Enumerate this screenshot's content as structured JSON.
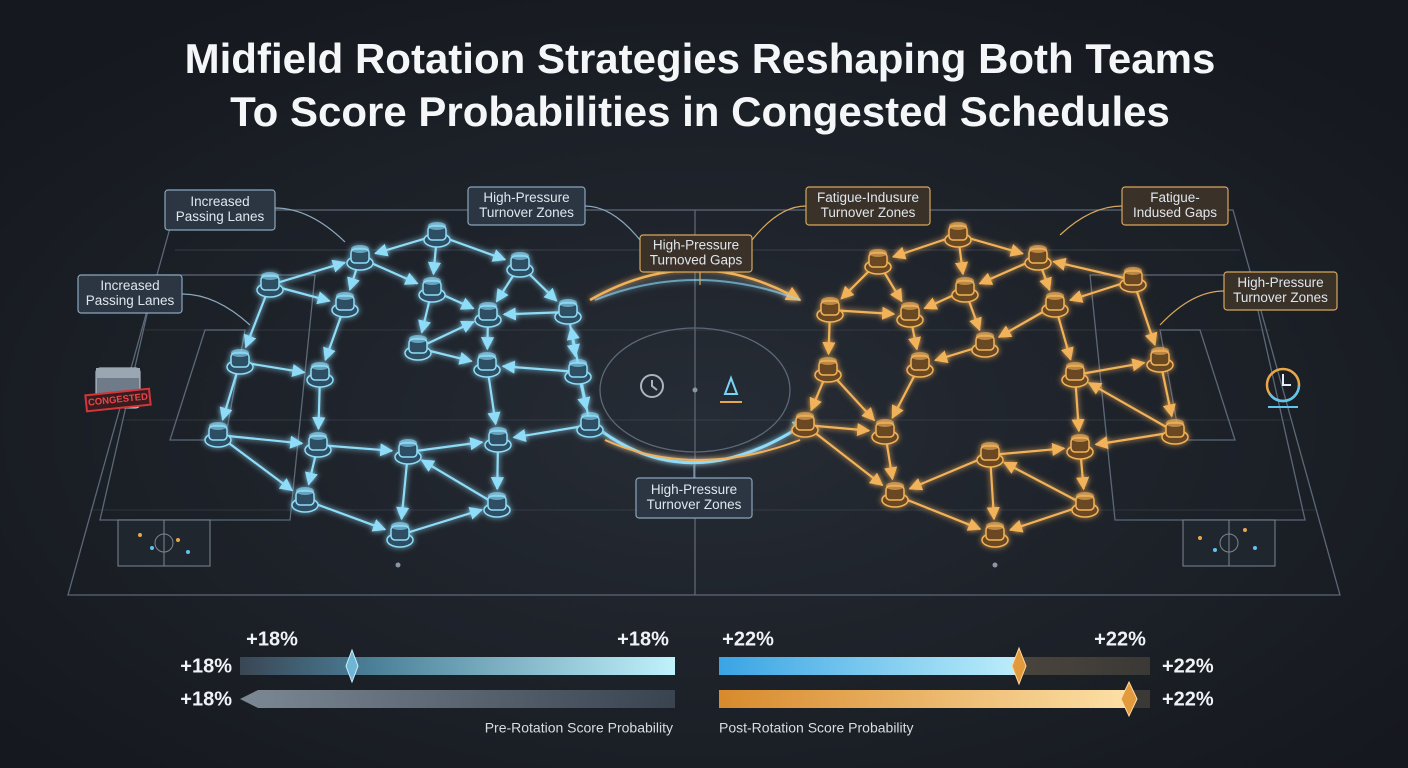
{
  "header": {
    "title": [
      "Midfield Rotation Strategies Reshaping Both Teams",
      "To Score Probabilities in Congested Schedules"
    ]
  },
  "callouts": [
    {
      "lines": [
        "Increased",
        "Passing Lanes"
      ]
    },
    {
      "lines": [
        "Increased",
        "Passing Lanes"
      ]
    },
    {
      "lines": [
        "High-Pressure",
        "Turnover Zones"
      ]
    },
    {
      "lines": [
        "High-Pressure",
        "Turnoved Gaps"
      ]
    },
    {
      "lines": [
        "Fatigue-Indusure",
        "Turnover Zones"
      ]
    },
    {
      "lines": [
        "Fatigue-",
        "Indused Gaps"
      ]
    },
    {
      "lines": [
        "High-Pressure",
        "Turnover Zones"
      ]
    },
    {
      "lines": [
        "High-Pressure",
        "Turnover Zones"
      ]
    }
  ],
  "stamp": "CONGESTED",
  "bars": {
    "pre": {
      "caption": "Pre-Rotation Score Probability",
      "labels": [
        "+18%",
        "+18%",
        "+18%",
        "+18%"
      ]
    },
    "post": {
      "caption": "Post-Rotation Score Probability",
      "labels": [
        "+22%",
        "+22%",
        "+22%",
        "+22%"
      ]
    }
  }
}
